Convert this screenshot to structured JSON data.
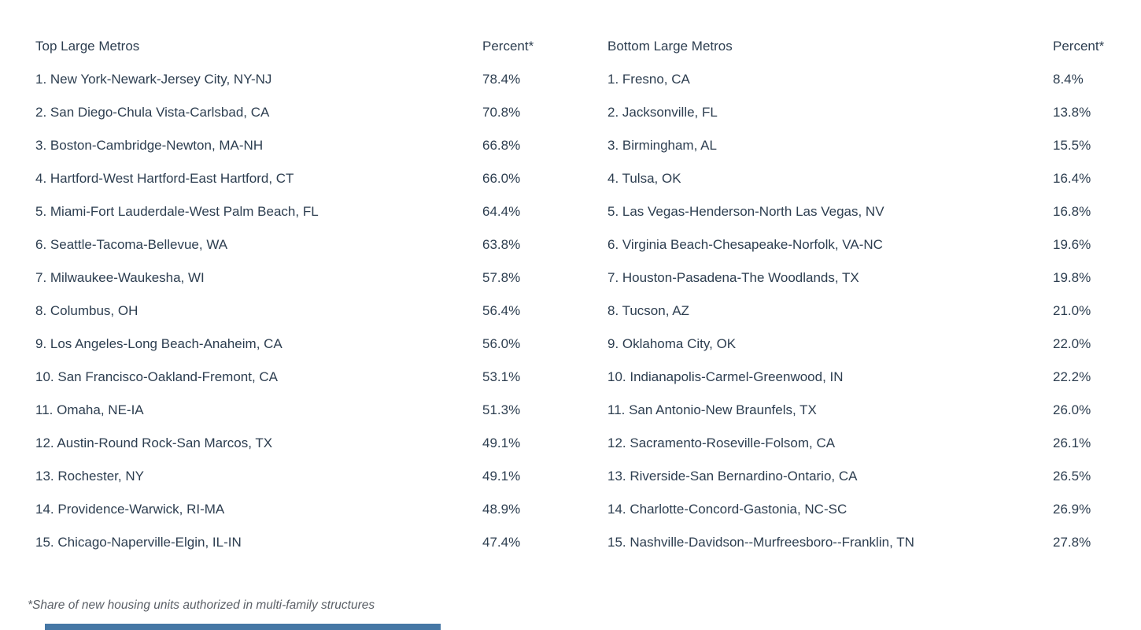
{
  "page": {
    "background": "#ffffff",
    "text_color": "#2d3e50",
    "footnote_color": "#5a5f66",
    "accent_bar_color": "#4577a5"
  },
  "footnote": "*Share of new housing units authorized in multi-family structures",
  "tables": {
    "top": {
      "header": {
        "name": "Top Large Metros",
        "percent": "Percent*"
      },
      "rows": [
        {
          "label": "1. New York-Newark-Jersey City, NY-NJ",
          "percent": "78.4%"
        },
        {
          "label": "2. San Diego-Chula Vista-Carlsbad, CA",
          "percent": "70.8%"
        },
        {
          "label": "3. Boston-Cambridge-Newton, MA-NH",
          "percent": "66.8%"
        },
        {
          "label": "4. Hartford-West Hartford-East Hartford, CT",
          "percent": "66.0%"
        },
        {
          "label": "5. Miami-Fort Lauderdale-West Palm Beach, FL",
          "percent": "64.4%"
        },
        {
          "label": "6. Seattle-Tacoma-Bellevue, WA",
          "percent": "63.8%"
        },
        {
          "label": "7. Milwaukee-Waukesha, WI",
          "percent": "57.8%"
        },
        {
          "label": "8. Columbus, OH",
          "percent": "56.4%"
        },
        {
          "label": "9. Los Angeles-Long Beach-Anaheim, CA",
          "percent": "56.0%"
        },
        {
          "label": "10. San Francisco-Oakland-Fremont, CA",
          "percent": "53.1%"
        },
        {
          "label": "11. Omaha, NE-IA",
          "percent": "51.3%"
        },
        {
          "label": "12. Austin-Round Rock-San Marcos, TX",
          "percent": "49.1%"
        },
        {
          "label": "13. Rochester, NY",
          "percent": "49.1%"
        },
        {
          "label": "14. Providence-Warwick, RI-MA",
          "percent": "48.9%"
        },
        {
          "label": "15. Chicago-Naperville-Elgin, IL-IN",
          "percent": "47.4%"
        }
      ]
    },
    "bottom": {
      "header": {
        "name": "Bottom Large Metros",
        "percent": "Percent*"
      },
      "rows": [
        {
          "label": "1. Fresno, CA",
          "percent": "8.4%"
        },
        {
          "label": "2. Jacksonville, FL",
          "percent": "13.8%"
        },
        {
          "label": "3. Birmingham, AL",
          "percent": "15.5%"
        },
        {
          "label": "4. Tulsa, OK",
          "percent": "16.4%"
        },
        {
          "label": "5. Las Vegas-Henderson-North Las Vegas, NV",
          "percent": "16.8%"
        },
        {
          "label": "6. Virginia Beach-Chesapeake-Norfolk, VA-NC",
          "percent": "19.6%"
        },
        {
          "label": "7. Houston-Pasadena-The Woodlands, TX",
          "percent": "19.8%"
        },
        {
          "label": "8. Tucson, AZ",
          "percent": "21.0%"
        },
        {
          "label": "9. Oklahoma City, OK",
          "percent": "22.0%"
        },
        {
          "label": "10. Indianapolis-Carmel-Greenwood, IN",
          "percent": "22.2%"
        },
        {
          "label": "11. San Antonio-New Braunfels, TX",
          "percent": "26.0%"
        },
        {
          "label": "12. Sacramento-Roseville-Folsom, CA",
          "percent": "26.1%"
        },
        {
          "label": "13. Riverside-San Bernardino-Ontario, CA",
          "percent": "26.5%"
        },
        {
          "label": "14. Charlotte-Concord-Gastonia, NC-SC",
          "percent": "26.9%"
        },
        {
          "label": "15. Nashville-Davidson--Murfreesboro--Franklin, TN",
          "percent": "27.8%"
        }
      ]
    }
  },
  "chart_data": {
    "type": "table",
    "title": "",
    "footnote": "*Share of new housing units authorized in multi-family structures",
    "tables": [
      {
        "name": "Top Large Metros",
        "value_label": "Percent*",
        "rows": [
          [
            "New York-Newark-Jersey City, NY-NJ",
            78.4
          ],
          [
            "San Diego-Chula Vista-Carlsbad, CA",
            70.8
          ],
          [
            "Boston-Cambridge-Newton, MA-NH",
            66.8
          ],
          [
            "Hartford-West Hartford-East Hartford, CT",
            66.0
          ],
          [
            "Miami-Fort Lauderdale-West Palm Beach, FL",
            64.4
          ],
          [
            "Seattle-Tacoma-Bellevue, WA",
            63.8
          ],
          [
            "Milwaukee-Waukesha, WI",
            57.8
          ],
          [
            "Columbus, OH",
            56.4
          ],
          [
            "Los Angeles-Long Beach-Anaheim, CA",
            56.0
          ],
          [
            "San Francisco-Oakland-Fremont, CA",
            53.1
          ],
          [
            "Omaha, NE-IA",
            51.3
          ],
          [
            "Austin-Round Rock-San Marcos, TX",
            49.1
          ],
          [
            "Rochester, NY",
            49.1
          ],
          [
            "Providence-Warwick, RI-MA",
            48.9
          ],
          [
            "Chicago-Naperville-Elgin, IL-IN",
            47.4
          ]
        ]
      },
      {
        "name": "Bottom Large Metros",
        "value_label": "Percent*",
        "rows": [
          [
            "Fresno, CA",
            8.4
          ],
          [
            "Jacksonville, FL",
            13.8
          ],
          [
            "Birmingham, AL",
            15.5
          ],
          [
            "Tulsa, OK",
            16.4
          ],
          [
            "Las Vegas-Henderson-North Las Vegas, NV",
            16.8
          ],
          [
            "Virginia Beach-Chesapeake-Norfolk, VA-NC",
            19.6
          ],
          [
            "Houston-Pasadena-The Woodlands, TX",
            19.8
          ],
          [
            "Tucson, AZ",
            21.0
          ],
          [
            "Oklahoma City, OK",
            22.0
          ],
          [
            "Indianapolis-Carmel-Greenwood, IN",
            22.2
          ],
          [
            "San Antonio-New Braunfels, TX",
            26.0
          ],
          [
            "Sacramento-Roseville-Folsom, CA",
            26.1
          ],
          [
            "Riverside-San Bernardino-Ontario, CA",
            26.5
          ],
          [
            "Charlotte-Concord-Gastonia, NC-SC",
            26.9
          ],
          [
            "Nashville-Davidson--Murfreesboro--Franklin, TN",
            27.8
          ]
        ]
      }
    ]
  }
}
